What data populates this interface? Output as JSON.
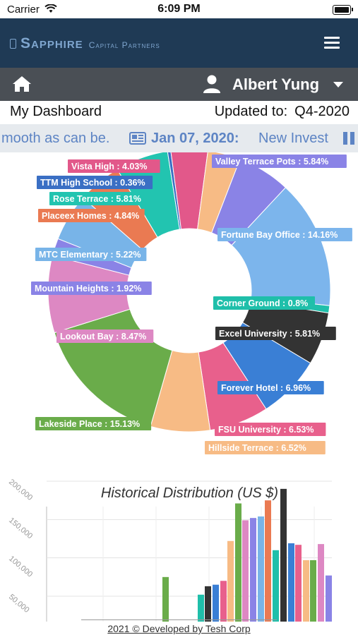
{
  "status_bar": {
    "carrier": "Carrier",
    "time": "6:09 PM"
  },
  "app": {
    "brand_main": "Sapphire",
    "brand_sub": "Capital Partners"
  },
  "user": {
    "name": "Albert Yung"
  },
  "dashboard": {
    "title": "My Dashboard",
    "updated_label": "Updated to:",
    "updated_value": "Q4-2020"
  },
  "ticker": {
    "text_before": "mooth as can be.",
    "date": "Jan 07, 2020:",
    "text_after": "New Invest"
  },
  "colors": {
    "appbar": "#1f3a55",
    "userbar": "#4a4f55",
    "accent": "#5d84c4"
  },
  "chart_data": [
    {
      "type": "pie",
      "variant": "donut",
      "slices": [
        {
          "label": "Fortune Bay Office",
          "value": 14.16,
          "color": "#7cb5ec"
        },
        {
          "label": "Corner Ground",
          "value": 0.8,
          "color": "#1fbfaa"
        },
        {
          "label": "Excel University",
          "value": 5.81,
          "color": "#333333"
        },
        {
          "label": "Forever Hotel",
          "value": 6.96,
          "color": "#3a7fd5"
        },
        {
          "label": "FSU University",
          "value": 6.53,
          "color": "#e8608c"
        },
        {
          "label": "Hillside Terrace",
          "value": 6.52,
          "color": "#f7bb85"
        },
        {
          "label": "Lakeside Place",
          "value": 15.13,
          "color": "#6aac4a"
        },
        {
          "label": "Lookout Bay",
          "value": 8.47,
          "color": "#dd88c3"
        },
        {
          "label": "Mountain Heights",
          "value": 1.92,
          "color": "#8a83e6"
        },
        {
          "label": "MTC Elementary",
          "value": 5.22,
          "color": "#78b4e8"
        },
        {
          "label": "Placeex Homes",
          "value": 4.84,
          "color": "#ea7a52"
        },
        {
          "label": "Rose Terrace",
          "value": 5.81,
          "color": "#22c4b0"
        },
        {
          "label": "TTM High School",
          "value": 0.36,
          "color": "#3a6fc4"
        },
        {
          "label": "Vista High",
          "value": 4.03,
          "color": "#e2588a"
        },
        {
          "label": "",
          "value": 3.6,
          "color": "#f7bb85"
        },
        {
          "label": "Valley Terrace Pots",
          "value": 5.84,
          "color": "#8a83e6"
        }
      ]
    },
    {
      "type": "bar",
      "title": "Historical Distribution (US $)",
      "y_ticks": [
        "200,000",
        "150,000",
        "100,000",
        "50,000"
      ],
      "ylim": [
        50000,
        200000
      ],
      "values": [
        {
          "v": 75000,
          "color": "#6aac4a"
        },
        {
          "v": 52000,
          "color": "#1fbfaa"
        },
        {
          "v": 63000,
          "color": "#333333"
        },
        {
          "v": 65000,
          "color": "#3a7fd5"
        },
        {
          "v": 70000,
          "color": "#e8608c"
        },
        {
          "v": 122000,
          "color": "#f7bb85"
        },
        {
          "v": 171000,
          "color": "#6aac4a"
        },
        {
          "v": 149000,
          "color": "#dd88c3"
        },
        {
          "v": 152000,
          "color": "#8a83e6"
        },
        {
          "v": 154000,
          "color": "#78b4e8"
        },
        {
          "v": 175000,
          "color": "#ea7a52"
        },
        {
          "v": 110000,
          "color": "#1fbfaa"
        },
        {
          "v": 190000,
          "color": "#333333"
        },
        {
          "v": 119000,
          "color": "#3a7fd5"
        },
        {
          "v": 117000,
          "color": "#e8608c"
        },
        {
          "v": 97000,
          "color": "#f7bb85"
        },
        {
          "v": 97000,
          "color": "#6aac4a"
        },
        {
          "v": 118000,
          "color": "#dd88c3"
        },
        {
          "v": 77000,
          "color": "#8a83e6"
        }
      ]
    }
  ],
  "footer": {
    "text": "2021 © Developed by Tesh Corp"
  }
}
